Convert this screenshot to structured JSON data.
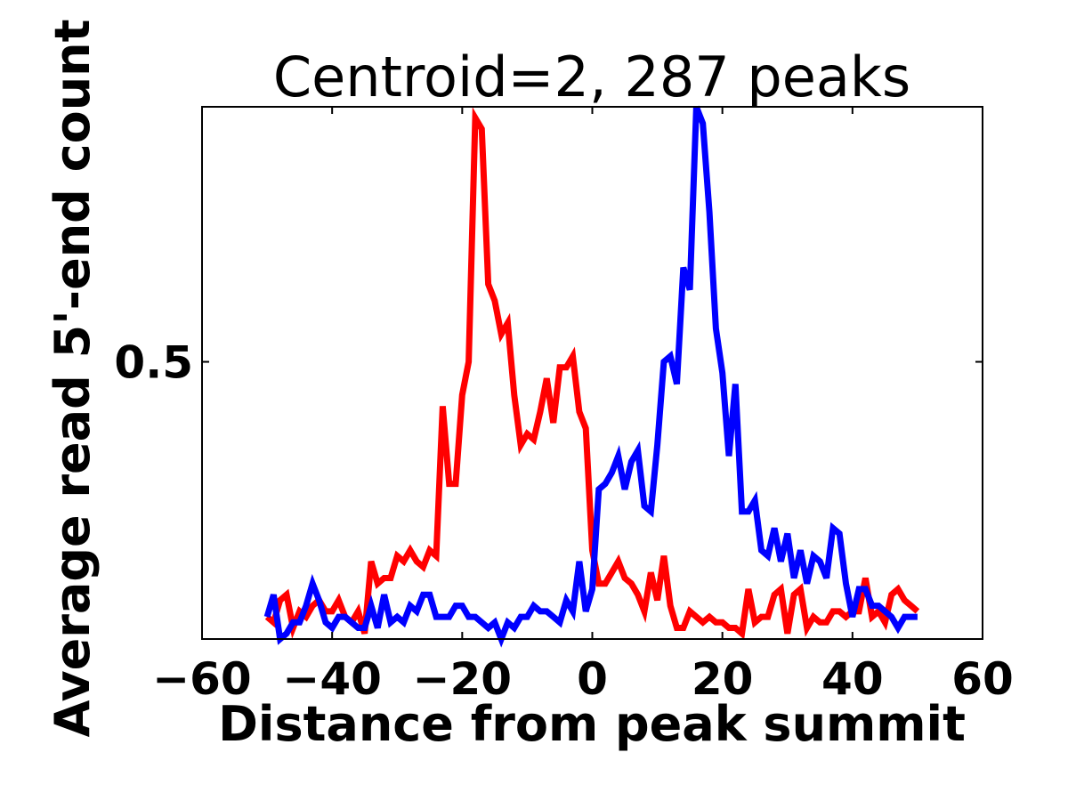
{
  "chart_data": {
    "type": "line",
    "title": "Centroid=2, 287 peaks",
    "xlabel": "Distance from peak summit",
    "ylabel": "Average read 5'-end count",
    "xlim": [
      -60,
      60
    ],
    "ylim": [
      0.0,
      0.96
    ],
    "xticks": [
      -60,
      -40,
      -20,
      0,
      20,
      40,
      60
    ],
    "xtick_labels": [
      "−60",
      "−40",
      "−20",
      "0",
      "20",
      "40",
      "60"
    ],
    "yticks": [
      0.5
    ],
    "ytick_labels": [
      "0.5"
    ],
    "grid": false,
    "legend": "none",
    "x": [
      -50,
      -49,
      -48,
      -47,
      -46,
      -45,
      -44,
      -43,
      -42,
      -41,
      -40,
      -39,
      -38,
      -37,
      -36,
      -35,
      -34,
      -33,
      -32,
      -31,
      -30,
      -29,
      -28,
      -27,
      -26,
      -25,
      -24,
      -23,
      -22,
      -21,
      -20,
      -19,
      -18,
      -17,
      -16,
      -15,
      -14,
      -13,
      -12,
      -11,
      -10,
      -9,
      -8,
      -7,
      -6,
      -5,
      -4,
      -3,
      -2,
      -1,
      0,
      1,
      2,
      3,
      4,
      5,
      6,
      7,
      8,
      9,
      10,
      11,
      12,
      13,
      14,
      15,
      16,
      17,
      18,
      19,
      20,
      21,
      22,
      23,
      24,
      25,
      26,
      27,
      28,
      29,
      30,
      31,
      32,
      33,
      34,
      35,
      36,
      37,
      38,
      39,
      40,
      41,
      42,
      43,
      44,
      45,
      46,
      47,
      48,
      49,
      50
    ],
    "series": [
      {
        "color": "#ff0000",
        "values": [
          0.04,
          0.03,
          0.07,
          0.08,
          0.02,
          0.05,
          0.04,
          0.06,
          0.07,
          0.05,
          0.05,
          0.07,
          0.04,
          0.03,
          0.05,
          0.01,
          0.14,
          0.1,
          0.11,
          0.11,
          0.15,
          0.14,
          0.16,
          0.14,
          0.13,
          0.16,
          0.15,
          0.42,
          0.28,
          0.28,
          0.44,
          0.5,
          0.94,
          0.92,
          0.64,
          0.61,
          0.55,
          0.57,
          0.44,
          0.35,
          0.37,
          0.36,
          0.41,
          0.47,
          0.39,
          0.49,
          0.49,
          0.51,
          0.41,
          0.38,
          0.16,
          0.1,
          0.1,
          0.12,
          0.14,
          0.11,
          0.1,
          0.08,
          0.05,
          0.12,
          0.07,
          0.15,
          0.06,
          0.02,
          0.02,
          0.05,
          0.04,
          0.03,
          0.04,
          0.03,
          0.03,
          0.02,
          0.02,
          0.01,
          0.09,
          0.03,
          0.04,
          0.04,
          0.08,
          0.09,
          0.01,
          0.08,
          0.09,
          0.02,
          0.04,
          0.03,
          0.03,
          0.05,
          0.05,
          0.04,
          0.05,
          0.05,
          0.11,
          0.04,
          0.05,
          0.03,
          0.08,
          0.09,
          0.07,
          0.06,
          0.05
        ]
      },
      {
        "color": "#0000ff",
        "values": [
          0.04,
          0.08,
          0.0,
          0.01,
          0.03,
          0.03,
          0.06,
          0.1,
          0.07,
          0.03,
          0.02,
          0.04,
          0.04,
          0.03,
          0.02,
          0.02,
          0.06,
          0.02,
          0.08,
          0.03,
          0.04,
          0.03,
          0.06,
          0.05,
          0.08,
          0.08,
          0.04,
          0.04,
          0.04,
          0.06,
          0.06,
          0.04,
          0.04,
          0.03,
          0.02,
          0.03,
          0.0,
          0.03,
          0.02,
          0.04,
          0.04,
          0.06,
          0.05,
          0.05,
          0.04,
          0.03,
          0.07,
          0.05,
          0.14,
          0.05,
          0.09,
          0.27,
          0.28,
          0.3,
          0.33,
          0.27,
          0.32,
          0.34,
          0.24,
          0.23,
          0.35,
          0.5,
          0.51,
          0.46,
          0.67,
          0.63,
          0.96,
          0.93,
          0.77,
          0.56,
          0.48,
          0.33,
          0.46,
          0.23,
          0.23,
          0.25,
          0.16,
          0.15,
          0.2,
          0.14,
          0.19,
          0.11,
          0.16,
          0.1,
          0.15,
          0.14,
          0.11,
          0.2,
          0.19,
          0.1,
          0.04,
          0.09,
          0.09,
          0.06,
          0.06,
          0.05,
          0.04,
          0.02,
          0.04,
          0.04,
          0.04
        ]
      }
    ]
  }
}
